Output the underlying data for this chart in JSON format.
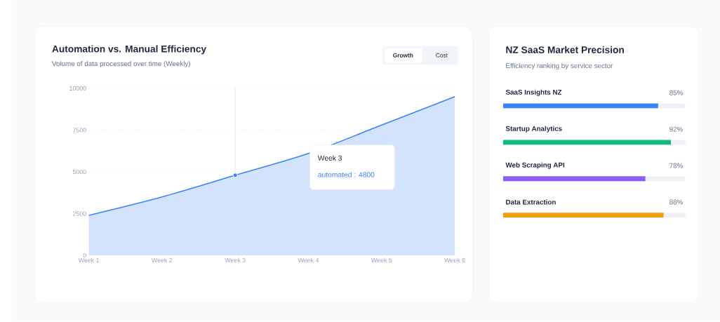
{
  "chart_data": [
    {
      "type": "area",
      "title": "Automation vs. Manual Efficiency",
      "subtitle": "Volume of data processed over time (Weekly)",
      "categories": [
        "Week 1",
        "Week 2",
        "Week 3",
        "Week 4",
        "Week 5",
        "Week 6"
      ],
      "series": [
        {
          "color": "#3b82f6",
          "values": [
            2400,
            3500,
            4800,
            6100,
            7800,
            9500
          ]
        }
      ],
      "ylim": [
        0,
        10000
      ],
      "yticks": [
        0,
        2500,
        5000,
        7500,
        10000
      ],
      "grid": "y",
      "ref_lines": [
        {
          "axis": "x",
          "value": "Week 3",
          "color": "#d3dde9"
        }
      ],
      "annotations": [
        "Growth",
        "Cost",
        "Week 3",
        "automated : 4800"
      ]
    },
    {
      "type": "bar",
      "orientation": "horizontal",
      "title": "NZ SaaS Market Precision",
      "subtitle": "Efficiency ranking by service sector",
      "categories": [
        "SaaS Insights NZ",
        "Startup Analytics",
        "Web Scraping API",
        "Data Extraction"
      ],
      "values": [
        85,
        92,
        78,
        88
      ],
      "colors": [
        "#3b82f6",
        "#10b981",
        "#8b5cf6",
        "#f59e0b"
      ],
      "value_labels": [
        "85%",
        "92%",
        "78%",
        "88%"
      ],
      "xlim": [
        0,
        100
      ]
    }
  ]
}
